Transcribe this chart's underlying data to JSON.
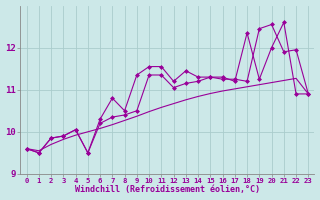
{
  "xlabel": "Windchill (Refroidissement éolien,°C)",
  "x": [
    0,
    1,
    2,
    3,
    4,
    5,
    6,
    7,
    8,
    9,
    10,
    11,
    12,
    13,
    14,
    15,
    16,
    17,
    18,
    19,
    20,
    21,
    22,
    23
  ],
  "series1": [
    9.6,
    9.5,
    9.85,
    9.9,
    10.05,
    9.5,
    10.3,
    10.8,
    10.5,
    11.35,
    11.55,
    11.55,
    11.2,
    11.45,
    11.3,
    11.3,
    11.3,
    11.2,
    12.35,
    11.25,
    12.0,
    12.6,
    10.9,
    10.9
  ],
  "series2": [
    9.6,
    9.5,
    9.85,
    9.9,
    10.05,
    9.5,
    10.2,
    10.35,
    10.4,
    10.5,
    11.35,
    11.35,
    11.05,
    11.15,
    11.2,
    11.3,
    11.25,
    11.25,
    11.2,
    12.45,
    12.55,
    11.9,
    11.95,
    10.9
  ],
  "series3": [
    9.6,
    9.55,
    9.7,
    9.82,
    9.92,
    10.0,
    10.08,
    10.17,
    10.27,
    10.37,
    10.48,
    10.58,
    10.67,
    10.76,
    10.84,
    10.91,
    10.97,
    11.02,
    11.07,
    11.12,
    11.17,
    11.22,
    11.27,
    10.9
  ],
  "line_color": "#990099",
  "bg_color": "#cce8e8",
  "grid_color": "#aacccc",
  "ylim": [
    9.0,
    13.0
  ],
  "yticks": [
    9,
    10,
    11,
    12
  ],
  "xlim": [
    -0.5,
    23.5
  ],
  "figw": 3.2,
  "figh": 2.0,
  "dpi": 100
}
